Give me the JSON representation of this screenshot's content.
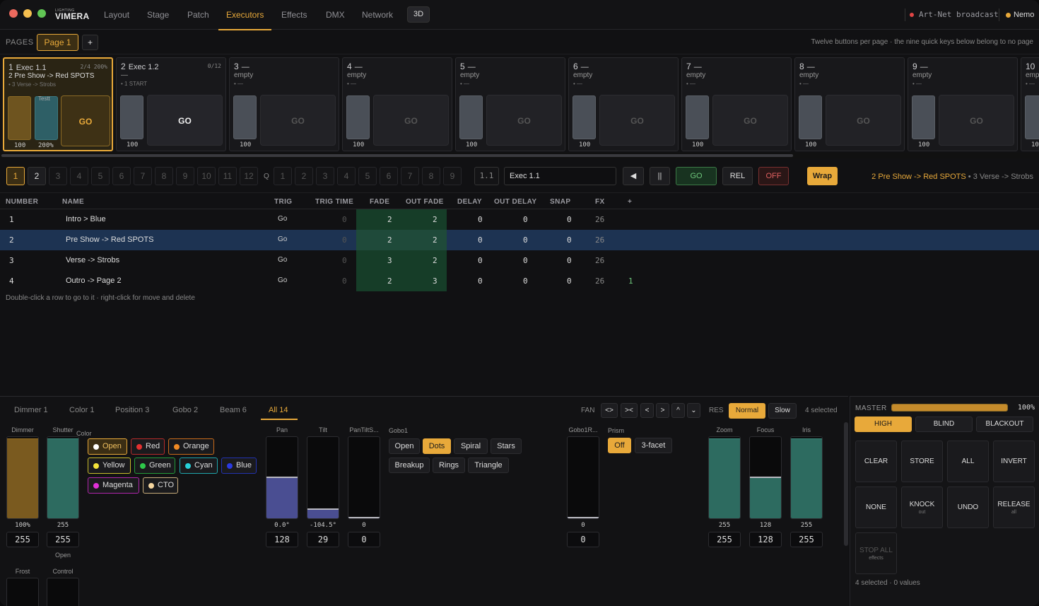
{
  "app": {
    "logo_small": "LIGHTING",
    "logo": "VIMERA"
  },
  "nav": {
    "tabs": [
      "Layout",
      "Stage",
      "Patch",
      "Executors",
      "Effects",
      "DMX",
      "Network"
    ],
    "active_tab": "Executors",
    "view_3d": "3D",
    "artnet_status": "Art-Net broadcast",
    "user": "Nemo"
  },
  "pages": {
    "label": "PAGES",
    "current": "Page 1",
    "add": "+",
    "hint": "Twelve buttons per page · the nine quick keys below belong to no page"
  },
  "executors": [
    {
      "num": "1",
      "name": "Exec 1.1",
      "count": "2/4 200%",
      "line2": "2 Pre Show -> Red SPOTS",
      "line3": "• 3 Verse -> Strobs",
      "fader_name": "Testt",
      "fader1": "100",
      "fader2": "200%",
      "go": "GO"
    },
    {
      "num": "2",
      "name": "Exec 1.2",
      "count": "0/12",
      "line2": "—",
      "line3": "• 1 START",
      "fader1": "100",
      "go": "GO"
    },
    {
      "num": "3",
      "name": "—",
      "line2": "empty",
      "line3": "• —",
      "fader1": "100",
      "go": "GO"
    },
    {
      "num": "4",
      "name": "—",
      "line2": "empty",
      "line3": "• —",
      "fader1": "100",
      "go": "GO"
    },
    {
      "num": "5",
      "name": "—",
      "line2": "empty",
      "line3": "• —",
      "fader1": "100",
      "go": "GO"
    },
    {
      "num": "6",
      "name": "—",
      "line2": "empty",
      "line3": "• —",
      "fader1": "100",
      "go": "GO"
    },
    {
      "num": "7",
      "name": "—",
      "line2": "empty",
      "line3": "• —",
      "fader1": "100",
      "go": "GO"
    },
    {
      "num": "8",
      "name": "—",
      "line2": "empty",
      "line3": "• —",
      "fader1": "100",
      "go": "GO"
    },
    {
      "num": "9",
      "name": "—",
      "line2": "empty",
      "line3": "• —",
      "fader1": "100",
      "go": "GO"
    },
    {
      "num": "10",
      "name": "",
      "line2": "emp",
      "line3": "• —",
      "fader1": "10",
      "go": ""
    }
  ],
  "cuebar": {
    "exec_buttons": [
      "1",
      "2",
      "3",
      "4",
      "5",
      "6",
      "7",
      "8",
      "9",
      "10",
      "11",
      "12"
    ],
    "q_label": "Q",
    "quick_keys": [
      "1",
      "2",
      "3",
      "4",
      "5",
      "6",
      "7",
      "8",
      "9"
    ],
    "cue_number": "1.1",
    "exec_name": "Exec 1.1",
    "prev": "◀",
    "pause": "||",
    "go": "GO",
    "rel": "REL",
    "off": "OFF",
    "wrap": "Wrap",
    "status_current": "2 Pre Show -> Red SPOTS",
    "status_next": " • 3 Verse -> Strobs"
  },
  "table": {
    "headers": [
      "NUMBER",
      "NAME",
      "TRIG",
      "TRIG TIME",
      "FADE",
      "OUT FADE",
      "DELAY",
      "OUT DELAY",
      "SNAP",
      "FX",
      "+"
    ],
    "rows": [
      {
        "number": "1",
        "name": "Intro > Blue",
        "trig": "Go",
        "trig_time": "0",
        "fade": "2",
        "out_fade": "2",
        "delay": "0",
        "out_delay": "0",
        "snap": "0",
        "fx": "26",
        "extra": ""
      },
      {
        "number": "2",
        "name": "Pre Show -> Red SPOTS",
        "trig": "Go",
        "trig_time": "0",
        "fade": "2",
        "out_fade": "2",
        "delay": "0",
        "out_delay": "0",
        "snap": "0",
        "fx": "26",
        "extra": ""
      },
      {
        "number": "3",
        "name": "Verse -> Strobs",
        "trig": "Go",
        "trig_time": "0",
        "fade": "3",
        "out_fade": "2",
        "delay": "0",
        "out_delay": "0",
        "snap": "0",
        "fx": "26",
        "extra": ""
      },
      {
        "number": "4",
        "name": "Outro -> Page 2",
        "trig": "Go",
        "trig_time": "0",
        "fade": "2",
        "out_fade": "3",
        "delay": "0",
        "out_delay": "0",
        "snap": "0",
        "fx": "26",
        "extra": "1"
      }
    ],
    "hint": "Double-click a row to go to it · right-click for move and delete"
  },
  "programmer": {
    "tabs": [
      "Dimmer 1",
      "Color 1",
      "Position 3",
      "Gobo 2",
      "Beam 6",
      "All 14"
    ],
    "active_tab": "All 14",
    "fan_label": "FAN",
    "fan_buttons": [
      "<>",
      "><",
      "<",
      ">",
      "^",
      "⌄"
    ],
    "res_label": "RES",
    "res_normal": "Normal",
    "res_slow": "Slow",
    "selected": "4 selected",
    "dimmer": {
      "label": "Dimmer",
      "value": "100%",
      "box": "255",
      "level": 1.0
    },
    "shutter": {
      "label": "Shutter",
      "value": "255",
      "box": "255",
      "sub": "Open",
      "level": 1.0
    },
    "frost": {
      "label": "Frost"
    },
    "control": {
      "label": "Control"
    },
    "color_label": "Color",
    "colors": [
      {
        "name": "Open",
        "dot": "#ffffff",
        "border": "#e8a93a",
        "active": true
      },
      {
        "name": "Red",
        "dot": "#e53030",
        "border": "#b52a2a"
      },
      {
        "name": "Orange",
        "dot": "#f08a24",
        "border": "#c86a1a"
      },
      {
        "name": "Yellow",
        "dot": "#f2e23a",
        "border": "#c8bc2a"
      },
      {
        "name": "Green",
        "dot": "#2ec84a",
        "border": "#249c3a"
      },
      {
        "name": "Cyan",
        "dot": "#27d0d8",
        "border": "#1fa6ac"
      },
      {
        "name": "Blue",
        "dot": "#2a3ae0",
        "border": "#2232b0"
      },
      {
        "name": "Magenta",
        "dot": "#e030d8",
        "border": "#b026ac"
      },
      {
        "name": "CTO",
        "dot": "#f5d6a0",
        "border": "#c8ac7a"
      }
    ],
    "pan": {
      "label": "Pan",
      "value": "0.0°",
      "box": "128",
      "level": 0.5
    },
    "tilt": {
      "label": "Tilt",
      "value": "-104.5°",
      "box": "29",
      "level": 0.11
    },
    "pantilt": {
      "label": "PanTiltS...",
      "value": "0",
      "box": "0",
      "level": 0.0
    },
    "gobo_label": "Gobo1",
    "gobos": [
      {
        "name": "Open"
      },
      {
        "name": "Dots",
        "active": true
      },
      {
        "name": "Spiral"
      },
      {
        "name": "Stars"
      },
      {
        "name": "Breakup"
      },
      {
        "name": "Rings"
      },
      {
        "name": "Triangle"
      }
    ],
    "gobo_rot": {
      "label": "Gobo1R...",
      "value": "0",
      "box": "0",
      "level": 0.0
    },
    "prism_label": "Prism",
    "prism_off": "Off",
    "prism_3facet": "3-facet",
    "zoom": {
      "label": "Zoom",
      "value": "255",
      "box": "255",
      "level": 1.0
    },
    "focus": {
      "label": "Focus",
      "value": "128",
      "box": "128",
      "level": 0.5
    },
    "iris": {
      "label": "Iris",
      "value": "255",
      "box": "255",
      "level": 1.0
    }
  },
  "master": {
    "label": "MASTER",
    "value": "100%",
    "level": 1.0,
    "modes": [
      "HIGH",
      "BLIND",
      "BLACKOUT"
    ],
    "actions": [
      {
        "label": "CLEAR",
        "sub": ""
      },
      {
        "label": "STORE",
        "sub": ""
      },
      {
        "label": "ALL",
        "sub": ""
      },
      {
        "label": "INVERT",
        "sub": ""
      },
      {
        "label": "NONE",
        "sub": ""
      },
      {
        "label": "KNOCK",
        "sub": "out"
      },
      {
        "label": "UNDO",
        "sub": ""
      },
      {
        "label": "RELEASE",
        "sub": "all"
      },
      {
        "label": "STOP ALL",
        "sub": "effects"
      }
    ],
    "footer": "4 selected · 0 values"
  },
  "colors": {
    "accent": "#e8a93a",
    "selected_row": "#1d3352",
    "fade_cell": "#163d28"
  }
}
